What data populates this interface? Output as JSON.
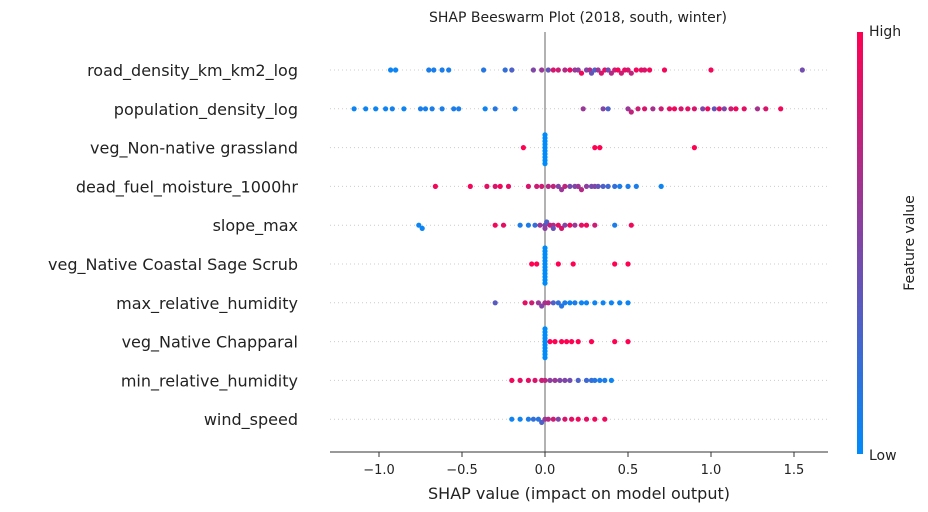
{
  "chart_data": {
    "type": "scatter",
    "title": "SHAP Beeswarm Plot (2018, south, winter)",
    "xlabel": "SHAP value (impact on model output)",
    "xlim": [
      -1.3,
      1.7
    ],
    "x_ticks": [
      -1.0,
      -0.5,
      0.0,
      0.5,
      1.0,
      1.5
    ],
    "x_tick_labels": [
      "−1.0",
      "−0.5",
      "0.0",
      "0.5",
      "1.0",
      "1.5"
    ],
    "colorbar": {
      "label": "Feature value",
      "high": "High",
      "low": "Low",
      "low_color": "#008bfb",
      "high_color": "#ff0052"
    },
    "features": [
      {
        "name": "road_density_km_km2_log",
        "x": [
          -0.93,
          -0.9,
          -0.7,
          -0.67,
          -0.62,
          -0.58,
          -0.37,
          -0.24,
          -0.2,
          -0.07,
          -0.02,
          0.02,
          0.05,
          0.08,
          0.12,
          0.15,
          0.18,
          0.2,
          0.22,
          0.25,
          0.27,
          0.28,
          0.3,
          0.32,
          0.34,
          0.36,
          0.38,
          0.4,
          0.42,
          0.44,
          0.46,
          0.48,
          0.5,
          0.52,
          0.55,
          0.58,
          0.6,
          0.63,
          0.72,
          1.0,
          1.55
        ],
        "v": [
          0.05,
          0.05,
          0.1,
          0.1,
          0.1,
          0.1,
          0.15,
          0.2,
          0.3,
          0.5,
          0.6,
          0.4,
          0.85,
          0.8,
          0.7,
          0.9,
          0.6,
          0.55,
          0.95,
          0.5,
          0.7,
          0.4,
          0.3,
          0.6,
          0.85,
          0.9,
          0.45,
          0.7,
          0.8,
          0.95,
          0.8,
          0.9,
          0.85,
          0.75,
          0.95,
          0.9,
          0.85,
          0.95,
          0.95,
          0.95,
          0.45
        ]
      },
      {
        "name": "population_density_log",
        "x": [
          -1.15,
          -1.08,
          -1.02,
          -0.96,
          -0.92,
          -0.85,
          -0.75,
          -0.72,
          -0.68,
          -0.62,
          -0.55,
          -0.52,
          -0.36,
          -0.3,
          -0.18,
          0.23,
          0.35,
          0.38,
          0.5,
          0.52,
          0.56,
          0.6,
          0.65,
          0.7,
          0.75,
          0.78,
          0.82,
          0.86,
          0.9,
          0.95,
          0.98,
          1.02,
          1.05,
          1.08,
          1.12,
          1.15,
          1.2,
          1.28,
          1.33,
          1.42
        ],
        "v": [
          0.05,
          0.05,
          0.05,
          0.05,
          0.08,
          0.05,
          0.1,
          0.08,
          0.1,
          0.1,
          0.1,
          0.1,
          0.05,
          0.15,
          0.1,
          0.6,
          0.5,
          0.3,
          0.6,
          0.75,
          0.8,
          0.85,
          0.65,
          0.8,
          0.9,
          0.95,
          0.85,
          0.9,
          0.85,
          0.5,
          0.95,
          0.4,
          0.9,
          0.5,
          0.8,
          0.95,
          0.9,
          0.65,
          0.85,
          0.95
        ]
      },
      {
        "name": "veg_Non-native grassland",
        "x": [
          0.0,
          0.0,
          0.0,
          0.0,
          0.0,
          0.0,
          0.0,
          0.0,
          0.0,
          0.0,
          -0.13,
          0.3,
          0.33,
          0.9
        ],
        "v": [
          0.0,
          0.0,
          0.0,
          0.0,
          0.0,
          0.0,
          0.0,
          0.0,
          0.0,
          0.0,
          1.0,
          1.0,
          1.0,
          1.0
        ]
      },
      {
        "name": "dead_fuel_moisture_1000hr",
        "x": [
          -0.66,
          -0.45,
          -0.35,
          -0.3,
          -0.27,
          -0.22,
          -0.1,
          -0.05,
          -0.02,
          0.02,
          0.05,
          0.08,
          0.1,
          0.12,
          0.15,
          0.18,
          0.2,
          0.22,
          0.25,
          0.28,
          0.3,
          0.32,
          0.35,
          0.38,
          0.42,
          0.45,
          0.5,
          0.55,
          0.7
        ],
        "v": [
          0.95,
          0.95,
          0.9,
          0.85,
          0.95,
          0.9,
          0.85,
          0.8,
          0.8,
          0.7,
          0.75,
          0.5,
          0.6,
          0.75,
          0.45,
          0.5,
          0.6,
          0.7,
          0.55,
          0.45,
          0.5,
          0.4,
          0.3,
          0.25,
          0.2,
          0.1,
          0.1,
          0.1,
          0.05
        ]
      },
      {
        "name": "slope_max",
        "x": [
          -0.76,
          -0.74,
          -0.3,
          -0.25,
          -0.15,
          -0.1,
          -0.06,
          -0.03,
          0.0,
          0.0,
          0.01,
          0.03,
          0.05,
          0.05,
          0.08,
          0.1,
          0.12,
          0.15,
          0.18,
          0.22,
          0.25,
          0.3,
          0.42,
          0.52
        ],
        "v": [
          0.05,
          0.05,
          0.95,
          0.9,
          0.1,
          0.1,
          0.2,
          0.6,
          0.45,
          0.55,
          0.3,
          0.8,
          0.7,
          0.4,
          0.9,
          0.85,
          0.5,
          0.95,
          0.6,
          0.9,
          0.95,
          0.8,
          0.1,
          0.95
        ]
      },
      {
        "name": "veg_Native Coastal Sage Scrub",
        "x": [
          0.0,
          0.0,
          0.0,
          0.0,
          0.0,
          0.0,
          0.0,
          0.0,
          0.0,
          0.0,
          0.0,
          0.0,
          -0.08,
          -0.05,
          0.08,
          0.17,
          0.42,
          0.5
        ],
        "v": [
          0.0,
          0.0,
          0.0,
          0.0,
          0.0,
          0.0,
          0.0,
          0.0,
          0.0,
          0.0,
          0.0,
          0.0,
          1.0,
          1.0,
          1.0,
          1.0,
          1.0,
          1.0
        ]
      },
      {
        "name": "max_relative_humidity",
        "x": [
          -0.3,
          -0.12,
          -0.08,
          -0.04,
          -0.02,
          0.0,
          0.02,
          0.05,
          0.08,
          0.1,
          0.12,
          0.15,
          0.18,
          0.22,
          0.25,
          0.3,
          0.35,
          0.4,
          0.45,
          0.5
        ],
        "v": [
          0.35,
          0.9,
          0.8,
          0.6,
          0.5,
          0.65,
          0.7,
          0.3,
          0.2,
          0.15,
          0.1,
          0.05,
          0.1,
          0.05,
          0.05,
          0.05,
          0.05,
          0.05,
          0.05,
          0.05
        ]
      },
      {
        "name": "veg_Native Chapparal",
        "x": [
          0.0,
          0.0,
          0.0,
          0.0,
          0.0,
          0.0,
          0.0,
          0.0,
          0.0,
          0.0,
          0.03,
          0.06,
          0.1,
          0.13,
          0.16,
          0.2,
          0.28,
          0.42,
          0.5
        ],
        "v": [
          0.0,
          0.0,
          0.0,
          0.0,
          0.0,
          0.0,
          0.0,
          0.0,
          0.0,
          0.0,
          1.0,
          1.0,
          1.0,
          1.0,
          1.0,
          1.0,
          1.0,
          1.0,
          1.0
        ]
      },
      {
        "name": "min_relative_humidity",
        "x": [
          -0.2,
          -0.15,
          -0.1,
          -0.06,
          -0.02,
          0.0,
          0.03,
          0.06,
          0.09,
          0.12,
          0.15,
          0.2,
          0.25,
          0.28,
          0.3,
          0.33,
          0.36,
          0.4
        ],
        "v": [
          0.95,
          0.9,
          0.9,
          0.85,
          0.8,
          0.75,
          0.55,
          0.6,
          0.5,
          0.5,
          0.45,
          0.3,
          0.25,
          0.2,
          0.15,
          0.1,
          0.1,
          0.05
        ]
      },
      {
        "name": "wind_speed",
        "x": [
          -0.2,
          -0.15,
          -0.1,
          -0.07,
          -0.04,
          -0.02,
          0.0,
          0.02,
          0.05,
          0.08,
          0.12,
          0.16,
          0.2,
          0.25,
          0.3,
          0.36
        ],
        "v": [
          0.05,
          0.05,
          0.1,
          0.2,
          0.15,
          0.3,
          0.6,
          0.7,
          0.8,
          0.5,
          0.85,
          0.9,
          0.95,
          0.9,
          0.95,
          0.95
        ]
      }
    ]
  }
}
